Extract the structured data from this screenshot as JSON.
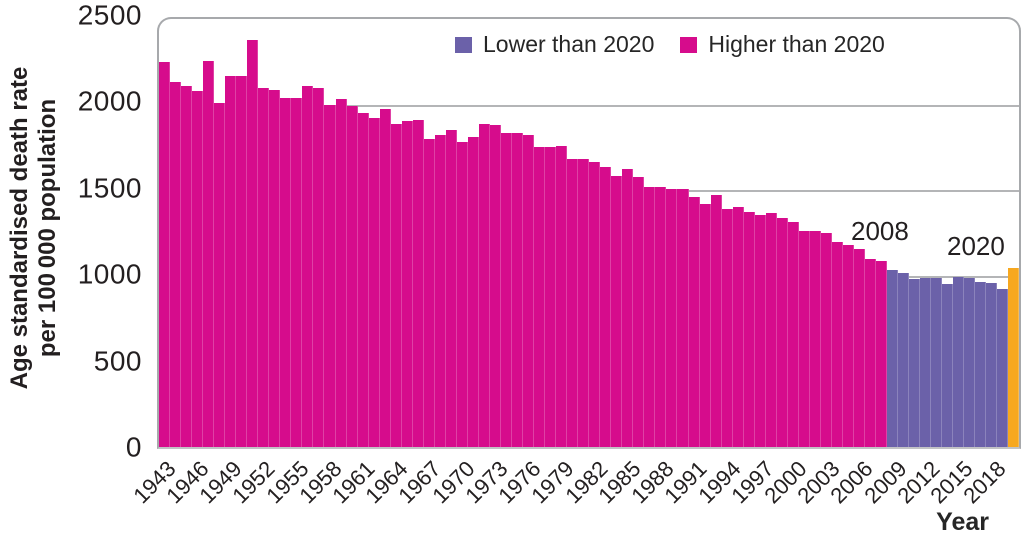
{
  "figure": {
    "y_axis_title_line1": "Age standardised death rate",
    "y_axis_title_line2": "per 100 000 population",
    "x_axis_title": "Year"
  },
  "legend": {
    "items": [
      {
        "label": "Lower than 2020",
        "color": "#6b61a9"
      },
      {
        "label": "Higher than 2020",
        "color": "#d60c8c"
      }
    ]
  },
  "annotations": [
    {
      "text": "2008"
    },
    {
      "text": "2020"
    }
  ],
  "colors": {
    "higher_than_2020": "#d60c8c",
    "lower_than_2020": "#6b61a9",
    "year_2020": "#f7a81f",
    "gridline": "#b4b5b7",
    "plot_border": "#a7a9ac",
    "text": "#231f20"
  },
  "chart_data": {
    "type": "bar",
    "title": "",
    "xlabel": "Year",
    "ylabel": "Age standardised death rate per 100 000 population",
    "ylim": [
      0,
      2500
    ],
    "grid": true,
    "legend_position": "top",
    "y_ticks": [
      0,
      500,
      1000,
      1500,
      2000,
      2500
    ],
    "x_ticks": [
      1943,
      1946,
      1949,
      1952,
      1955,
      1958,
      1961,
      1964,
      1967,
      1970,
      1973,
      1976,
      1979,
      1982,
      1985,
      1988,
      1991,
      1994,
      1997,
      2000,
      2003,
      2006,
      2009,
      2012,
      2015,
      2018
    ],
    "years": [
      1943,
      1944,
      1945,
      1946,
      1947,
      1948,
      1949,
      1950,
      1951,
      1952,
      1953,
      1954,
      1955,
      1956,
      1957,
      1958,
      1959,
      1960,
      1961,
      1962,
      1963,
      1964,
      1965,
      1966,
      1967,
      1968,
      1969,
      1970,
      1971,
      1972,
      1973,
      1974,
      1975,
      1976,
      1977,
      1978,
      1979,
      1980,
      1981,
      1982,
      1983,
      1984,
      1985,
      1986,
      1987,
      1988,
      1989,
      1990,
      1991,
      1992,
      1993,
      1994,
      1995,
      1996,
      1997,
      1998,
      1999,
      2000,
      2001,
      2002,
      2003,
      2004,
      2005,
      2006,
      2007,
      2008,
      2009,
      2010,
      2011,
      2012,
      2013,
      2014,
      2015,
      2016,
      2017,
      2018,
      2019,
      2020
    ],
    "values": [
      2250,
      2130,
      2110,
      2080,
      2255,
      2010,
      2170,
      2165,
      2375,
      2095,
      2085,
      2040,
      2040,
      2110,
      2095,
      1995,
      2035,
      1990,
      1950,
      1920,
      1975,
      1885,
      1905,
      1910,
      1800,
      1820,
      1850,
      1780,
      1810,
      1885,
      1880,
      1835,
      1835,
      1820,
      1750,
      1755,
      1760,
      1685,
      1685,
      1665,
      1635,
      1585,
      1625,
      1575,
      1520,
      1520,
      1510,
      1510,
      1460,
      1420,
      1470,
      1390,
      1400,
      1370,
      1355,
      1365,
      1335,
      1315,
      1260,
      1260,
      1250,
      1200,
      1180,
      1155,
      1100,
      1085,
      1032,
      1015,
      980,
      990,
      985,
      950,
      995,
      985,
      965,
      960,
      925,
      1045
    ],
    "series_color_rule": {
      "1943-2008": "higher_than_2020",
      "2009-2019": "lower_than_2020",
      "2020": "year_2020"
    }
  }
}
